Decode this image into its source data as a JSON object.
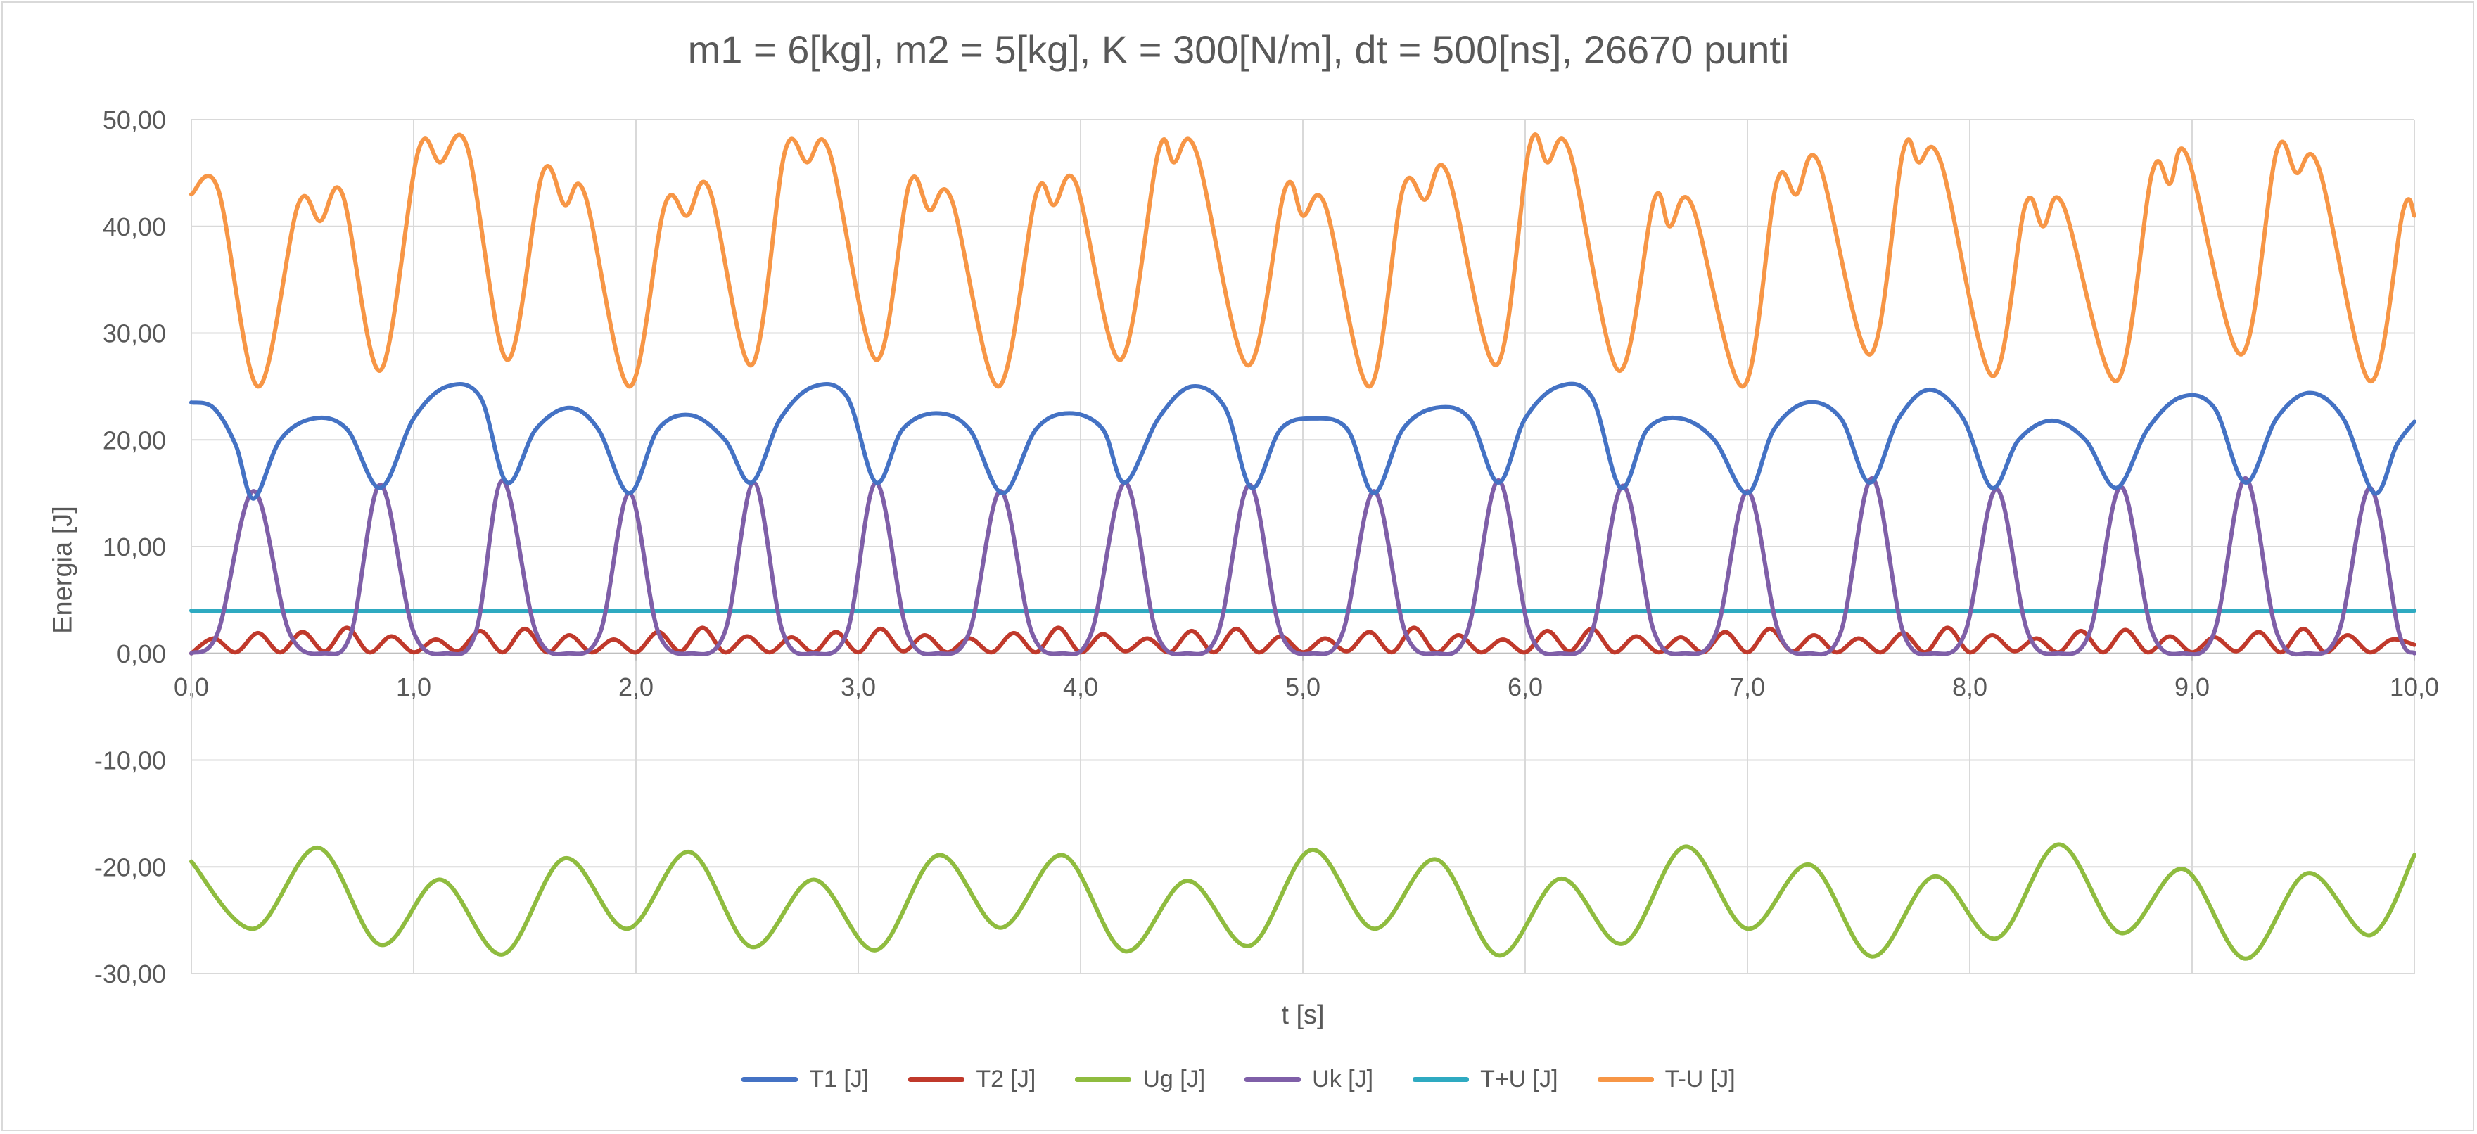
{
  "chart_data": {
    "type": "line",
    "title": "m1 = 6[kg], m2 = 5[kg], K = 300[N/m], dt = 500[ns], 26670 punti",
    "xlabel": "t [s]",
    "ylabel": "Energia [J]",
    "xlim": [
      0,
      10
    ],
    "ylim": [
      -30,
      50
    ],
    "x_ticks": [
      "0,0",
      "1,0",
      "2,0",
      "3,0",
      "4,0",
      "5,0",
      "6,0",
      "7,0",
      "8,0",
      "9,0",
      "10,0"
    ],
    "y_ticks": [
      "-30,00",
      "-20,00",
      "-10,00",
      "0,00",
      "10,00",
      "20,00",
      "30,00",
      "40,00",
      "50,00"
    ],
    "grid": true,
    "legend_position": "bottom",
    "series": [
      {
        "name": "T1 [J]",
        "color": "#4472c4",
        "x": [
          0,
          0.1,
          0.2,
          0.28,
          0.4,
          0.55,
          0.7,
          0.85,
          1.0,
          1.15,
          1.3,
          1.42,
          1.55,
          1.7,
          1.83,
          1.97,
          2.1,
          2.25,
          2.4,
          2.52,
          2.65,
          2.8,
          2.95,
          3.08,
          3.2,
          3.35,
          3.5,
          3.65,
          3.8,
          3.95,
          4.1,
          4.2,
          4.35,
          4.5,
          4.65,
          4.77,
          4.9,
          5.05,
          5.2,
          5.32,
          5.45,
          5.6,
          5.75,
          5.88,
          6.0,
          6.15,
          6.3,
          6.43,
          6.55,
          6.7,
          6.85,
          7.0,
          7.12,
          7.27,
          7.42,
          7.55,
          7.68,
          7.82,
          7.97,
          8.1,
          8.22,
          8.37,
          8.52,
          8.66,
          8.8,
          8.95,
          9.1,
          9.24,
          9.38,
          9.53,
          9.68,
          9.82,
          9.92,
          10.0
        ],
        "y": [
          23.5,
          23.0,
          19.5,
          14.5,
          20,
          22,
          21,
          15.5,
          22,
          25,
          24,
          16,
          21,
          23,
          21,
          15,
          21,
          22.3,
          20,
          16,
          22,
          25,
          24,
          16,
          21,
          22.5,
          21,
          15,
          21,
          22.5,
          21,
          16,
          22,
          25,
          23,
          15.5,
          21,
          22,
          21,
          15,
          21,
          23,
          22,
          16,
          22,
          25,
          24,
          15.5,
          21,
          22,
          20,
          15,
          21,
          23.5,
          22,
          16,
          22,
          24.7,
          22,
          15.5,
          20,
          21.8,
          20,
          15.5,
          21,
          24,
          23,
          16,
          22,
          24.4,
          22,
          15,
          19.5,
          21.7
        ]
      },
      {
        "name": "T2 [J]",
        "color": "#c0392b",
        "x": [
          0,
          0.1,
          0.2,
          0.3,
          0.4,
          0.5,
          0.6,
          0.7,
          0.8,
          0.9,
          1.0,
          1.1,
          1.2,
          1.3,
          1.4,
          1.5,
          1.6,
          1.7,
          1.8,
          1.9,
          2.0,
          2.1,
          2.2,
          2.3,
          2.4,
          2.5,
          2.6,
          2.7,
          2.8,
          2.9,
          3.0,
          3.1,
          3.2,
          3.3,
          3.4,
          3.5,
          3.6,
          3.7,
          3.8,
          3.9,
          4.0,
          4.1,
          4.2,
          4.3,
          4.4,
          4.5,
          4.6,
          4.7,
          4.8,
          4.9,
          5.0,
          5.1,
          5.2,
          5.3,
          5.4,
          5.5,
          5.6,
          5.7,
          5.8,
          5.9,
          6.0,
          6.1,
          6.2,
          6.3,
          6.4,
          6.5,
          6.6,
          6.7,
          6.8,
          6.9,
          7.0,
          7.1,
          7.2,
          7.3,
          7.4,
          7.5,
          7.6,
          7.7,
          7.8,
          7.9,
          8.0,
          8.1,
          8.2,
          8.3,
          8.4,
          8.5,
          8.6,
          8.7,
          8.8,
          8.9,
          9.0,
          9.1,
          9.2,
          9.3,
          9.4,
          9.5,
          9.6,
          9.7,
          9.8,
          9.9,
          10.0
        ],
        "y": [
          0,
          1.4,
          0.1,
          1.9,
          0.1,
          2.0,
          0.2,
          2.4,
          0.1,
          1.6,
          0.1,
          1.3,
          0.2,
          2.1,
          0.1,
          2.3,
          0.1,
          1.7,
          0.1,
          1.3,
          0.1,
          2.0,
          0.2,
          2.4,
          0.1,
          1.6,
          0.1,
          1.5,
          0.1,
          2.0,
          0.1,
          2.3,
          0.2,
          1.7,
          0.1,
          1.4,
          0.1,
          1.9,
          0.1,
          2.4,
          0.1,
          1.8,
          0.2,
          1.4,
          0.1,
          2.1,
          0.1,
          2.3,
          0.1,
          1.6,
          0.1,
          1.4,
          0.2,
          2.0,
          0.1,
          2.4,
          0.1,
          1.7,
          0.1,
          1.3,
          0.1,
          2.1,
          0.2,
          2.3,
          0.1,
          1.6,
          0.1,
          1.5,
          0.1,
          2.0,
          0.1,
          2.3,
          0.2,
          1.7,
          0.1,
          1.4,
          0.1,
          1.9,
          0.1,
          2.4,
          0.1,
          1.7,
          0.2,
          1.4,
          0.1,
          2.1,
          0.1,
          2.2,
          0.1,
          1.6,
          0.1,
          1.5,
          0.2,
          2.0,
          0.1,
          2.3,
          0.1,
          1.7,
          0.1,
          1.3,
          0.8
        ]
      },
      {
        "name": "Ug [J]",
        "color": "#8fbc3f",
        "x": [
          0,
          0.28,
          0.57,
          0.85,
          1.12,
          1.4,
          1.68,
          1.96,
          2.24,
          2.52,
          2.8,
          3.08,
          3.36,
          3.64,
          3.92,
          4.2,
          4.48,
          4.76,
          5.04,
          5.32,
          5.6,
          5.88,
          6.16,
          6.44,
          6.72,
          7.0,
          7.28,
          7.56,
          7.84,
          8.12,
          8.4,
          8.68,
          8.96,
          9.24,
          9.52,
          9.8,
          10.0
        ],
        "y": [
          -19.5,
          -25.8,
          -18.2,
          -27.3,
          -21.2,
          -28.2,
          -19.2,
          -25.8,
          -18.6,
          -27.5,
          -21.2,
          -27.8,
          -18.9,
          -25.7,
          -18.9,
          -27.9,
          -21.3,
          -27.4,
          -18.4,
          -25.8,
          -19.3,
          -28.3,
          -21.1,
          -27.2,
          -18.1,
          -25.8,
          -19.8,
          -28.4,
          -20.9,
          -26.7,
          -17.9,
          -26.2,
          -20.2,
          -28.6,
          -20.6,
          -26.4,
          -18.9
        ]
      },
      {
        "name": "Uk [J]",
        "color": "#7f5fa8",
        "x": [
          0,
          0.12,
          0.28,
          0.44,
          0.6,
          0.72,
          0.85,
          1.0,
          1.15,
          1.28,
          1.4,
          1.55,
          1.7,
          1.84,
          1.97,
          2.1,
          2.25,
          2.4,
          2.53,
          2.66,
          2.8,
          2.95,
          3.08,
          3.22,
          3.36,
          3.5,
          3.64,
          3.78,
          3.92,
          4.05,
          4.2,
          4.34,
          4.48,
          4.62,
          4.76,
          4.9,
          5.05,
          5.18,
          5.32,
          5.46,
          5.6,
          5.74,
          5.88,
          6.02,
          6.16,
          6.3,
          6.44,
          6.58,
          6.72,
          6.86,
          7.0,
          7.14,
          7.28,
          7.42,
          7.56,
          7.7,
          7.84,
          7.98,
          8.12,
          8.26,
          8.4,
          8.54,
          8.68,
          8.82,
          8.96,
          9.1,
          9.24,
          9.38,
          9.52,
          9.66,
          9.8,
          9.93,
          10.0
        ],
        "y": [
          0,
          2,
          15.2,
          2,
          0,
          2,
          15.8,
          2,
          0,
          2,
          16.2,
          2,
          0,
          2,
          15.0,
          2,
          0,
          2,
          16.0,
          2,
          0,
          2,
          16.0,
          2,
          0,
          2,
          15.2,
          2,
          0,
          2,
          16.0,
          2,
          0,
          2,
          15.8,
          2,
          0,
          2,
          15.2,
          2,
          0,
          2,
          16.2,
          2,
          0,
          2,
          15.7,
          2,
          0,
          2,
          15.2,
          2,
          0,
          2,
          16.4,
          2,
          0,
          2,
          15.4,
          2,
          0,
          2,
          15.6,
          2,
          0,
          2,
          16.4,
          2,
          0,
          2,
          15.5,
          2,
          0
        ]
      },
      {
        "name": "T+U [J]",
        "color": "#2eaac1",
        "x": [
          0,
          10
        ],
        "y": [
          4.0,
          4.0
        ]
      },
      {
        "name": "T-U [J]",
        "color": "#f79646",
        "x": [
          0,
          0.12,
          0.3,
          0.48,
          0.58,
          0.68,
          0.85,
          1.02,
          1.12,
          1.24,
          1.42,
          1.58,
          1.68,
          1.77,
          1.97,
          2.13,
          2.23,
          2.33,
          2.52,
          2.67,
          2.77,
          2.87,
          3.08,
          3.23,
          3.32,
          3.42,
          3.63,
          3.8,
          3.88,
          3.98,
          4.18,
          4.35,
          4.42,
          4.52,
          4.75,
          4.92,
          5.0,
          5.1,
          5.3,
          5.45,
          5.55,
          5.65,
          5.87,
          6.02,
          6.1,
          6.2,
          6.42,
          6.58,
          6.65,
          6.75,
          6.98,
          7.13,
          7.22,
          7.32,
          7.55,
          7.7,
          7.77,
          7.87,
          8.1,
          8.25,
          8.33,
          8.42,
          8.66,
          8.82,
          8.9,
          8.98,
          9.22,
          9.38,
          9.47,
          9.57,
          9.8,
          9.95,
          10.0
        ],
        "y": [
          43,
          43.5,
          25,
          42,
          40.5,
          43,
          26.5,
          47,
          46,
          47.5,
          27.5,
          45,
          42,
          43,
          25,
          42,
          41,
          43.5,
          27,
          47,
          46,
          47,
          27.5,
          44,
          41.5,
          42.5,
          25,
          43,
          42,
          44,
          27.5,
          47,
          46,
          47,
          27,
          43.5,
          41,
          42,
          25,
          43.5,
          42.5,
          45,
          27,
          47.5,
          46,
          47,
          26.5,
          42.5,
          40,
          42,
          25,
          44,
          43,
          46,
          28,
          47,
          46,
          46,
          26,
          42,
          40,
          42,
          25.5,
          45,
          44,
          46.5,
          28,
          47,
          45,
          45.5,
          25.5,
          41.5,
          41
        ]
      }
    ]
  }
}
